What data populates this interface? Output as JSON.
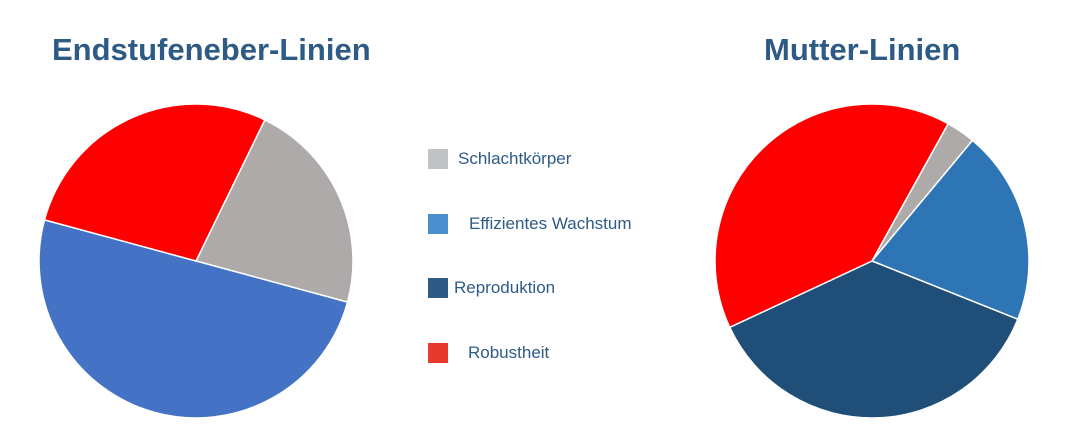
{
  "chart_data": [
    {
      "type": "pie",
      "title": "Endstufeneber-Linien",
      "slices": [
        {
          "label": "Schlachtkörper",
          "value": 22,
          "color": "#aeaaaa"
        },
        {
          "label": "Effizientes Wachstum",
          "value": 50,
          "color": "#4472c4"
        },
        {
          "label": "Reproduktion",
          "value": 0,
          "color": "#1f4e79"
        },
        {
          "label": "Robustheit",
          "value": 28,
          "color": "#ff0000"
        }
      ]
    },
    {
      "type": "pie",
      "title": "Mutter-Linien",
      "slices": [
        {
          "label": "Schlachtkörper",
          "value": 3,
          "color": "#aeaaaa"
        },
        {
          "label": "Effizientes Wachstum",
          "value": 20,
          "color": "#2e75b6"
        },
        {
          "label": "Reproduktion",
          "value": 37,
          "color": "#1f4e79"
        },
        {
          "label": "Robustheit",
          "value": 40,
          "color": "#ff0000"
        }
      ]
    }
  ],
  "legend": {
    "position": "center",
    "items": [
      {
        "label": "Schlachtkörper",
        "color": "#bfc3c4"
      },
      {
        "label": "Effizientes Wachstum",
        "color": "#4a90cf"
      },
      {
        "label": "Reproduktion",
        "color": "#2e5b86"
      },
      {
        "label": "Robustheit",
        "color": "#e8392f"
      }
    ]
  }
}
